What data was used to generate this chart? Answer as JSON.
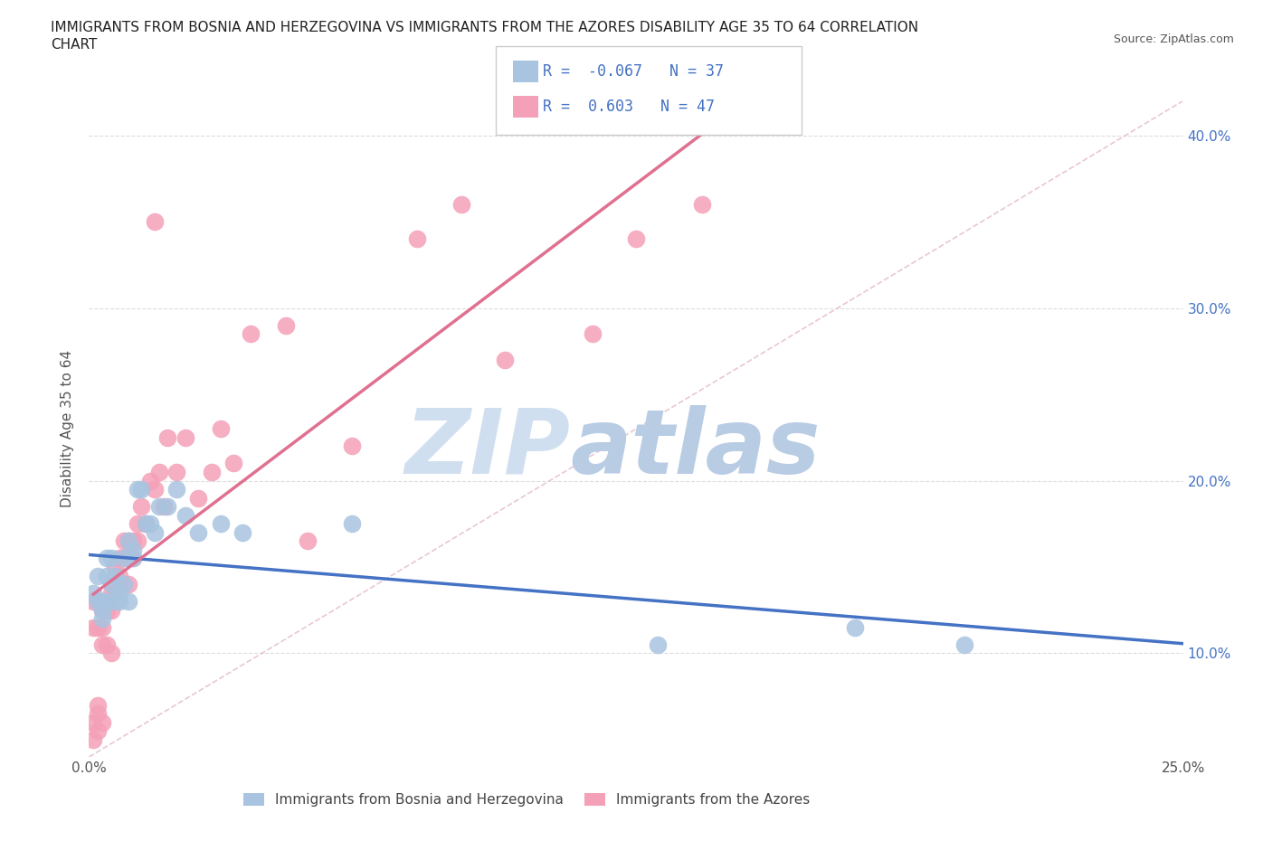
{
  "title_line1": "IMMIGRANTS FROM BOSNIA AND HERZEGOVINA VS IMMIGRANTS FROM THE AZORES DISABILITY AGE 35 TO 64 CORRELATION",
  "title_line2": "CHART",
  "source": "Source: ZipAtlas.com",
  "ylabel": "Disability Age 35 to 64",
  "xlim": [
    0.0,
    0.25
  ],
  "ylim": [
    0.04,
    0.42
  ],
  "legend1_label": "Immigrants from Bosnia and Herzegovina",
  "legend2_label": "Immigrants from the Azores",
  "R1": -0.067,
  "N1": 37,
  "R2": 0.603,
  "N2": 47,
  "color_bosnia": "#a8c4e0",
  "color_azores": "#f4a0b8",
  "color_blue": "#4472c4",
  "color_pink": "#e07090",
  "watermark_zip": "ZIP",
  "watermark_atlas": "atlas",
  "watermark_color_zip": "#d0dff0",
  "watermark_color_atlas": "#b8cce4",
  "bosnia_x": [
    0.001,
    0.002,
    0.002,
    0.003,
    0.003,
    0.003,
    0.004,
    0.004,
    0.004,
    0.005,
    0.005,
    0.006,
    0.006,
    0.007,
    0.007,
    0.008,
    0.008,
    0.009,
    0.009,
    0.01,
    0.01,
    0.011,
    0.012,
    0.013,
    0.014,
    0.015,
    0.016,
    0.018,
    0.02,
    0.022,
    0.025,
    0.03,
    0.035,
    0.06,
    0.13,
    0.175,
    0.2
  ],
  "bosnia_y": [
    0.135,
    0.13,
    0.145,
    0.13,
    0.12,
    0.125,
    0.145,
    0.155,
    0.13,
    0.155,
    0.14,
    0.13,
    0.145,
    0.135,
    0.13,
    0.14,
    0.155,
    0.13,
    0.165,
    0.16,
    0.155,
    0.195,
    0.195,
    0.175,
    0.175,
    0.17,
    0.185,
    0.185,
    0.195,
    0.18,
    0.17,
    0.175,
    0.17,
    0.175,
    0.105,
    0.115,
    0.105
  ],
  "azores_x": [
    0.001,
    0.001,
    0.002,
    0.002,
    0.003,
    0.003,
    0.003,
    0.004,
    0.004,
    0.005,
    0.005,
    0.005,
    0.006,
    0.006,
    0.007,
    0.007,
    0.008,
    0.008,
    0.009,
    0.009,
    0.01,
    0.01,
    0.011,
    0.011,
    0.012,
    0.013,
    0.014,
    0.015,
    0.016,
    0.017,
    0.018,
    0.02,
    0.022,
    0.025,
    0.028,
    0.03,
    0.033,
    0.037,
    0.045,
    0.05,
    0.06,
    0.075,
    0.085,
    0.095,
    0.115,
    0.125,
    0.14
  ],
  "azores_y": [
    0.13,
    0.115,
    0.13,
    0.115,
    0.115,
    0.125,
    0.105,
    0.125,
    0.105,
    0.135,
    0.125,
    0.1,
    0.15,
    0.135,
    0.155,
    0.145,
    0.165,
    0.155,
    0.14,
    0.165,
    0.165,
    0.155,
    0.175,
    0.165,
    0.185,
    0.175,
    0.2,
    0.195,
    0.205,
    0.185,
    0.225,
    0.205,
    0.225,
    0.19,
    0.205,
    0.23,
    0.21,
    0.285,
    0.29,
    0.165,
    0.22,
    0.34,
    0.36,
    0.27,
    0.285,
    0.34,
    0.36
  ],
  "azores_outlier_x": [
    0.015
  ],
  "azores_outlier_y": [
    0.35
  ],
  "azores_low_x": [
    0.001,
    0.001,
    0.002,
    0.002,
    0.002,
    0.003
  ],
  "azores_low_y": [
    0.05,
    0.06,
    0.055,
    0.065,
    0.07,
    0.06
  ]
}
